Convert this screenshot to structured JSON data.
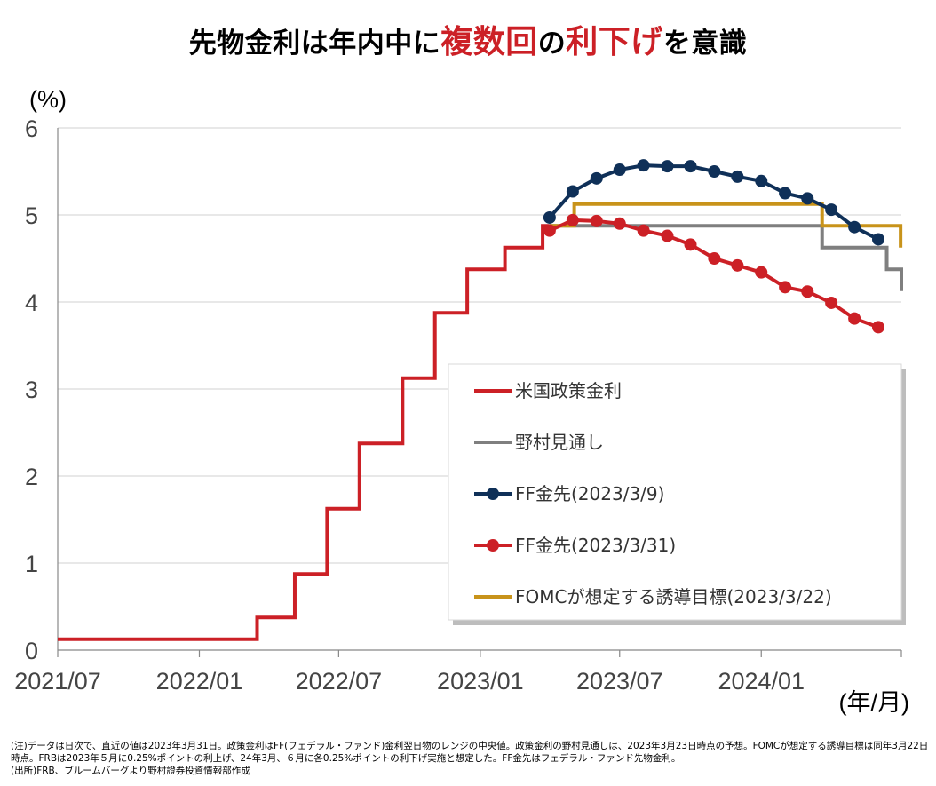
{
  "title": {
    "part1": "先物金利は年内中に",
    "part2": "複数回",
    "part3": "の",
    "part4": "利下げ",
    "part5": "を意識"
  },
  "footnote": "(注)データは日次で、直近の値は2023年3月31日。政策金利はFF(フェデラル・ファンド)金利翌日物のレンジの中央値。政策金利の野村見通しは、2023年3月23日時点の予想。FOMCが想定する誘導目標は同年3月22日時点。FRBは2023年５月に0.25%ポイントの利上げ、24年3月、６月に各0.25%ポイントの利下げ実施と想定した。FF金先はフェデラル・ファンド先物金利。\n(出所)FRB、ブルームバーグより野村證券投資情報部作成",
  "chart_data": {
    "type": "line",
    "ylabel": "(%)",
    "xlabel": "(年/月)",
    "ylim": [
      0,
      6
    ],
    "yticks": [
      0,
      1,
      2,
      3,
      4,
      5,
      6
    ],
    "xlim": [
      "2021/07",
      "2024/07"
    ],
    "xticks": [
      "2021/07",
      "2022/01",
      "2022/07",
      "2023/01",
      "2023/07",
      "2024/01"
    ],
    "grid": true,
    "legend_position": "lower-right",
    "series": [
      {
        "name": "米国政策金利",
        "style": "step",
        "color": "#cc2026",
        "points": [
          [
            "2021-07-01",
            0.125
          ],
          [
            "2022-03-17",
            0.375
          ],
          [
            "2022-05-05",
            0.875
          ],
          [
            "2022-06-16",
            1.625
          ],
          [
            "2022-07-28",
            2.375
          ],
          [
            "2022-09-22",
            3.125
          ],
          [
            "2022-11-03",
            3.875
          ],
          [
            "2022-12-15",
            4.375
          ],
          [
            "2023-02-02",
            4.625
          ],
          [
            "2023-03-23",
            4.875
          ],
          [
            "2023-03-31",
            4.875
          ]
        ]
      },
      {
        "name": "野村見通し",
        "style": "step",
        "color": "#7f7f7f",
        "points": [
          [
            "2023-03-31",
            4.875
          ],
          [
            "2024-03-20",
            4.625
          ],
          [
            "2024-06-12",
            4.375
          ],
          [
            "2024-07-01",
            4.125
          ]
        ]
      },
      {
        "name": "FF金先(2023/3/9)",
        "style": "line-marker",
        "color": "#0f3058",
        "points": [
          [
            "2023-04-01",
            4.97
          ],
          [
            "2023-05-01",
            5.27
          ],
          [
            "2023-06-01",
            5.42
          ],
          [
            "2023-07-01",
            5.52
          ],
          [
            "2023-08-01",
            5.57
          ],
          [
            "2023-09-01",
            5.56
          ],
          [
            "2023-10-01",
            5.56
          ],
          [
            "2023-11-01",
            5.5
          ],
          [
            "2023-12-01",
            5.44
          ],
          [
            "2024-01-01",
            5.39
          ],
          [
            "2024-02-01",
            5.25
          ],
          [
            "2024-03-01",
            5.19
          ],
          [
            "2024-04-01",
            5.06
          ],
          [
            "2024-05-01",
            4.86
          ],
          [
            "2024-06-01",
            4.72
          ]
        ]
      },
      {
        "name": "FF金先(2023/3/31)",
        "style": "line-marker",
        "color": "#cc2026",
        "points": [
          [
            "2023-04-01",
            4.82
          ],
          [
            "2023-05-01",
            4.94
          ],
          [
            "2023-06-01",
            4.93
          ],
          [
            "2023-07-01",
            4.9
          ],
          [
            "2023-08-01",
            4.82
          ],
          [
            "2023-09-01",
            4.76
          ],
          [
            "2023-10-01",
            4.66
          ],
          [
            "2023-11-01",
            4.5
          ],
          [
            "2023-12-01",
            4.42
          ],
          [
            "2024-01-01",
            4.34
          ],
          [
            "2024-02-01",
            4.17
          ],
          [
            "2024-03-01",
            4.12
          ],
          [
            "2024-04-01",
            3.99
          ],
          [
            "2024-05-01",
            3.81
          ],
          [
            "2024-06-01",
            3.71
          ]
        ]
      },
      {
        "name": "FOMCが想定する誘導目標(2023/3/22)",
        "style": "step",
        "color": "#c8931a",
        "points": [
          [
            "2023-04-01",
            4.875
          ],
          [
            "2023-05-03",
            5.125
          ],
          [
            "2024-03-20",
            4.875
          ],
          [
            "2024-06-12",
            4.875
          ],
          [
            "2024-06-30",
            4.625
          ]
        ]
      }
    ]
  }
}
